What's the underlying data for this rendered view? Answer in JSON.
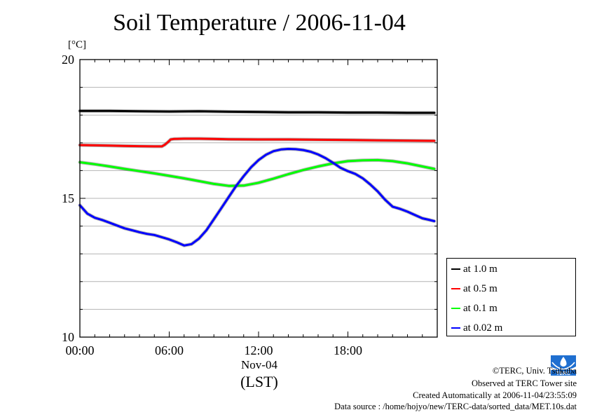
{
  "chart_data": {
    "type": "line",
    "title": "Soil Temperature / 2006-11-04",
    "ylabel_unit": "[°C]",
    "ylim": [
      10,
      20
    ],
    "yticks": [
      "10",
      "15",
      "20"
    ],
    "xlim": [
      0,
      24
    ],
    "xticks": [
      "00:00",
      "06:00",
      "12:00",
      "18:00"
    ],
    "xticks_values": [
      0,
      6,
      12,
      18
    ],
    "xdate": "Nov-04",
    "xzone": "(LST)",
    "grid": "horizontal",
    "legend_position": "bottom-right outside",
    "series": [
      {
        "name": "at 1.0 m",
        "color": "#000000",
        "x": [
          0,
          2,
          4,
          6,
          8,
          10,
          12,
          14,
          16,
          18,
          20,
          22,
          23.8
        ],
        "y": [
          18.15,
          18.15,
          18.14,
          18.13,
          18.14,
          18.12,
          18.11,
          18.1,
          18.1,
          18.09,
          18.09,
          18.08,
          18.08
        ]
      },
      {
        "name": "at 0.5 m",
        "color": "#ff0000",
        "x": [
          0,
          1,
          2,
          3,
          4,
          5,
          5.5,
          5.7,
          5.9,
          6.1,
          6.3,
          7,
          8,
          9,
          10,
          12,
          14,
          16,
          18,
          20,
          22,
          23.8
        ],
        "y": [
          16.92,
          16.91,
          16.9,
          16.89,
          16.88,
          16.87,
          16.87,
          16.93,
          17.02,
          17.12,
          17.14,
          17.15,
          17.15,
          17.14,
          17.13,
          17.12,
          17.12,
          17.11,
          17.1,
          17.09,
          17.08,
          17.07
        ]
      },
      {
        "name": "at 0.1 m",
        "color": "#00ff00",
        "x": [
          0,
          1,
          2,
          3,
          4,
          5,
          6,
          7,
          8,
          9,
          10,
          11,
          12,
          13,
          14,
          15,
          16,
          17,
          18,
          19,
          20,
          21,
          22,
          23,
          23.8
        ],
        "y": [
          16.3,
          16.23,
          16.15,
          16.06,
          15.98,
          15.9,
          15.81,
          15.72,
          15.62,
          15.52,
          15.45,
          15.46,
          15.56,
          15.71,
          15.87,
          16.02,
          16.15,
          16.26,
          16.34,
          16.37,
          16.38,
          16.34,
          16.26,
          16.15,
          16.06
        ]
      },
      {
        "name": "at 0.02 m",
        "color": "#0000ff",
        "x": [
          0,
          0.5,
          1,
          1.5,
          2,
          2.5,
          3,
          3.5,
          4,
          4.5,
          5,
          5.5,
          6,
          6.5,
          7,
          7.5,
          8,
          8.5,
          9,
          9.5,
          10,
          10.5,
          11,
          11.5,
          12,
          12.5,
          13,
          13.5,
          14,
          14.5,
          15,
          15.5,
          16,
          16.5,
          17,
          17.5,
          18,
          18.5,
          19,
          19.5,
          20,
          20.5,
          21,
          21.5,
          22,
          22.5,
          23,
          23.5,
          23.8
        ],
        "y": [
          14.75,
          14.45,
          14.3,
          14.22,
          14.12,
          14.02,
          13.92,
          13.85,
          13.78,
          13.72,
          13.68,
          13.6,
          13.52,
          13.42,
          13.3,
          13.35,
          13.55,
          13.85,
          14.25,
          14.65,
          15.05,
          15.45,
          15.8,
          16.12,
          16.38,
          16.57,
          16.7,
          16.76,
          16.78,
          16.77,
          16.74,
          16.68,
          16.58,
          16.45,
          16.28,
          16.1,
          15.98,
          15.88,
          15.72,
          15.5,
          15.25,
          14.95,
          14.7,
          14.62,
          14.52,
          14.4,
          14.28,
          14.22,
          14.18
        ]
      }
    ]
  },
  "footer": {
    "copyright": "©TERC, Univ. Tsukuba",
    "site": "Observed at TERC Tower site",
    "created": "Created Automatically at 2006-11-04/23:55:09",
    "source": "Data source : /home/hojyo/new/TERC-data/sorted_data/MET.10s.dat",
    "logo_text": "TERC"
  }
}
